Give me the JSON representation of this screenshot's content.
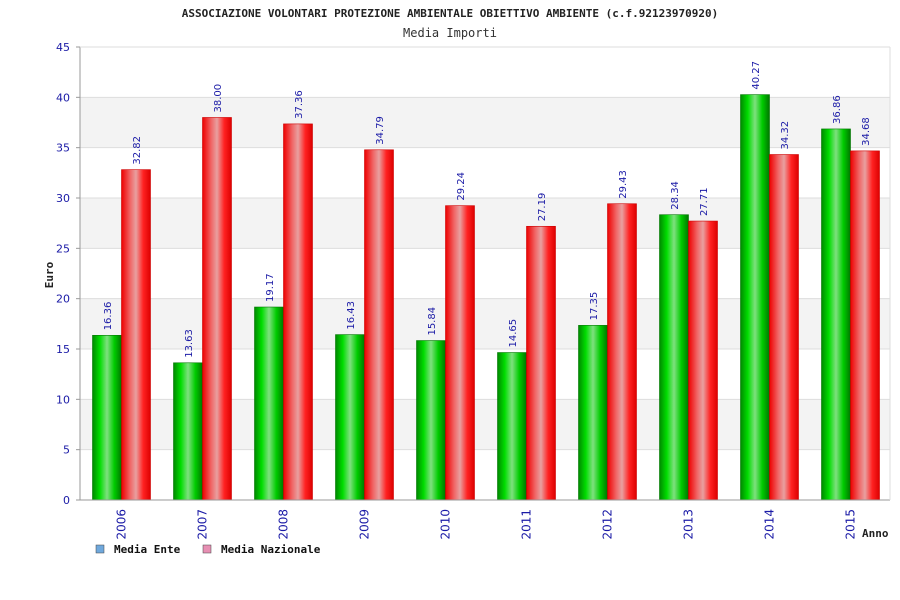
{
  "chart_data": {
    "type": "bar",
    "title": "ASSOCIAZIONE VOLONTARI PROTEZIONE AMBIENTALE OBIETTIVO AMBIENTE (c.f.92123970920)",
    "subtitle": "Media Importi",
    "xlabel": "Anno",
    "ylabel": "Euro",
    "ylim": [
      0,
      45
    ],
    "yticks": [
      0,
      5,
      10,
      15,
      20,
      25,
      30,
      35,
      40,
      45
    ],
    "grid": true,
    "legend_position": "bottom-left",
    "categories": [
      "2006",
      "2007",
      "2008",
      "2009",
      "2010",
      "2011",
      "2012",
      "2013",
      "2014",
      "2015"
    ],
    "series": [
      {
        "name": "Media Ente",
        "values": [
          16.36,
          13.63,
          19.17,
          16.43,
          15.84,
          14.65,
          17.35,
          28.34,
          40.27,
          36.86
        ],
        "labels": [
          "16.36",
          "13.63",
          "19.17",
          "16.43",
          "15.84",
          "14.65",
          "17.35",
          "28.34",
          "40.27",
          "36.86"
        ],
        "color": "#00cc00",
        "legend_color": "#6fa8dc"
      },
      {
        "name": "Media Nazionale",
        "values": [
          32.82,
          38.0,
          37.36,
          34.79,
          29.24,
          27.19,
          29.43,
          27.71,
          34.32,
          34.68
        ],
        "labels": [
          "32.82",
          "38.00",
          "37.36",
          "34.79",
          "29.24",
          "27.19",
          "29.43",
          "27.71",
          "34.32",
          "34.68"
        ],
        "color": "#ff0000",
        "legend_color": "#e78fb3"
      }
    ]
  }
}
